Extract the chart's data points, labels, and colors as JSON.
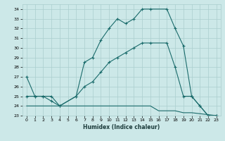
{
  "xlabel": "Humidex (Indice chaleur)",
  "background_color": "#cce8e8",
  "grid_color": "#aacece",
  "line_color": "#1a6b6b",
  "xlim": [
    -0.5,
    23.5
  ],
  "ylim": [
    23,
    34.5
  ],
  "yticks": [
    23,
    24,
    25,
    26,
    27,
    28,
    29,
    30,
    31,
    32,
    33,
    34
  ],
  "xticks": [
    0,
    1,
    2,
    3,
    4,
    5,
    6,
    7,
    8,
    9,
    10,
    11,
    12,
    13,
    14,
    15,
    16,
    17,
    18,
    19,
    20,
    21,
    22,
    23
  ],
  "line1_x": [
    0,
    1,
    2,
    3,
    4,
    6,
    7,
    8,
    9,
    10,
    11,
    12,
    13,
    14,
    15,
    17,
    18,
    19,
    20,
    21,
    22,
    23
  ],
  "line1_y": [
    27,
    25,
    25,
    24.5,
    24,
    25,
    28.5,
    29,
    30.8,
    32,
    33,
    32.5,
    33,
    34,
    34,
    34,
    32,
    30.2,
    25,
    24,
    23,
    23
  ],
  "line2_x": [
    0,
    1,
    2,
    3,
    4,
    6,
    7,
    8,
    9,
    10,
    11,
    12,
    13,
    14,
    15,
    17,
    18,
    19,
    20,
    21,
    22,
    23
  ],
  "line2_y": [
    25,
    25,
    25,
    25,
    24,
    25,
    26,
    26.5,
    27.5,
    28.5,
    29,
    29.5,
    30,
    30.5,
    30.5,
    30.5,
    28.0,
    25,
    25,
    24,
    23,
    23
  ],
  "line3_x": [
    0,
    1,
    2,
    3,
    4,
    5,
    6,
    7,
    8,
    9,
    10,
    11,
    12,
    13,
    14,
    15,
    16,
    17,
    18,
    19,
    20,
    21,
    22,
    23
  ],
  "line3_y": [
    24,
    24,
    24,
    24,
    24,
    24,
    24,
    24,
    24,
    24,
    24,
    24,
    24,
    24,
    24,
    24,
    23.5,
    23.5,
    23.5,
    23.3,
    23.3,
    23.2,
    23.1,
    23
  ]
}
